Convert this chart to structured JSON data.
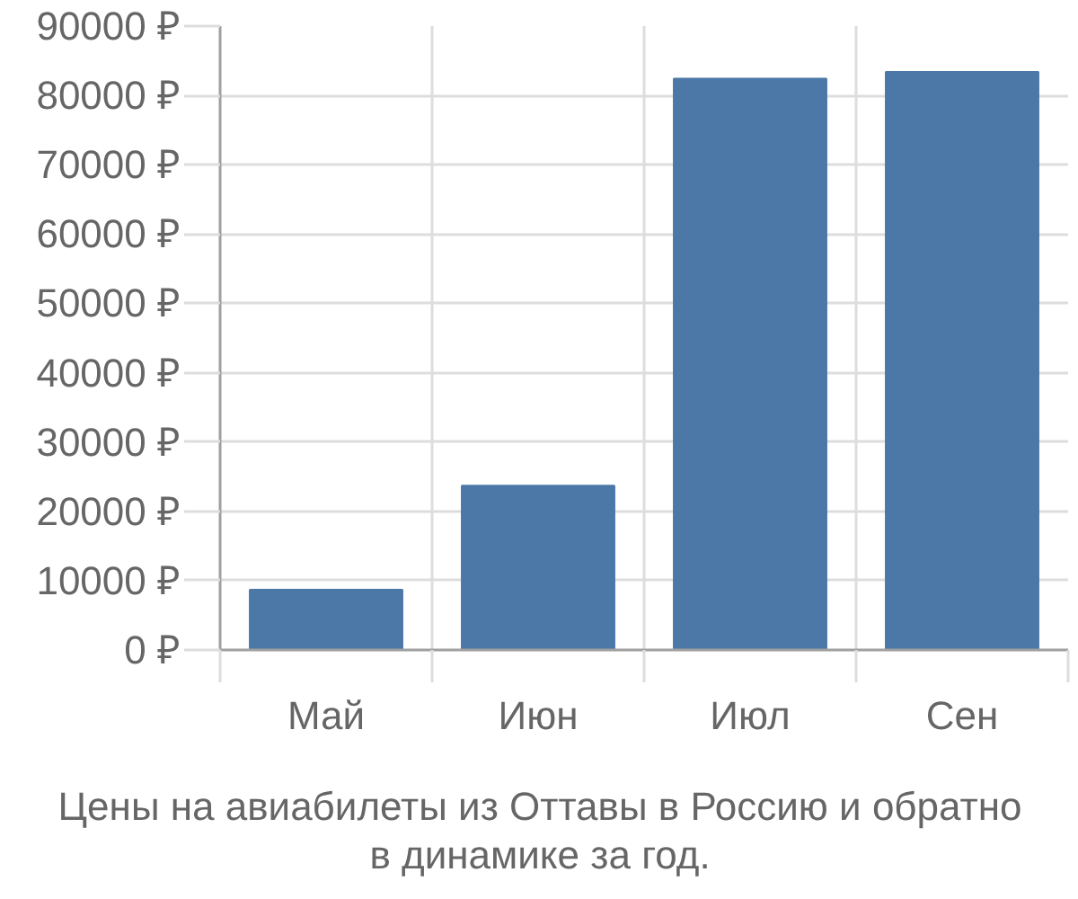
{
  "chart_data": {
    "type": "bar",
    "title": "Цены на авиабилеты из Оттавы в Россию и обратно в динамике за год.",
    "categories": [
      "Май",
      "Июн",
      "Июл",
      "Сен"
    ],
    "values": [
      8700,
      23700,
      82400,
      83400
    ],
    "color": "#4c78a8",
    "ylim": [
      0,
      90000
    ],
    "yticks": [
      {
        "value": 0,
        "label": "0 ₽"
      },
      {
        "value": 10000,
        "label": "10000 ₽"
      },
      {
        "value": 20000,
        "label": "20000 ₽"
      },
      {
        "value": 30000,
        "label": "30000 ₽"
      },
      {
        "value": 40000,
        "label": "40000 ₽"
      },
      {
        "value": 50000,
        "label": "50000 ₽"
      },
      {
        "value": 60000,
        "label": "60000 ₽"
      },
      {
        "value": 70000,
        "label": "70000 ₽"
      },
      {
        "value": 80000,
        "label": "80000 ₽"
      },
      {
        "value": 90000,
        "label": "90000 ₽"
      }
    ],
    "grid": true
  }
}
